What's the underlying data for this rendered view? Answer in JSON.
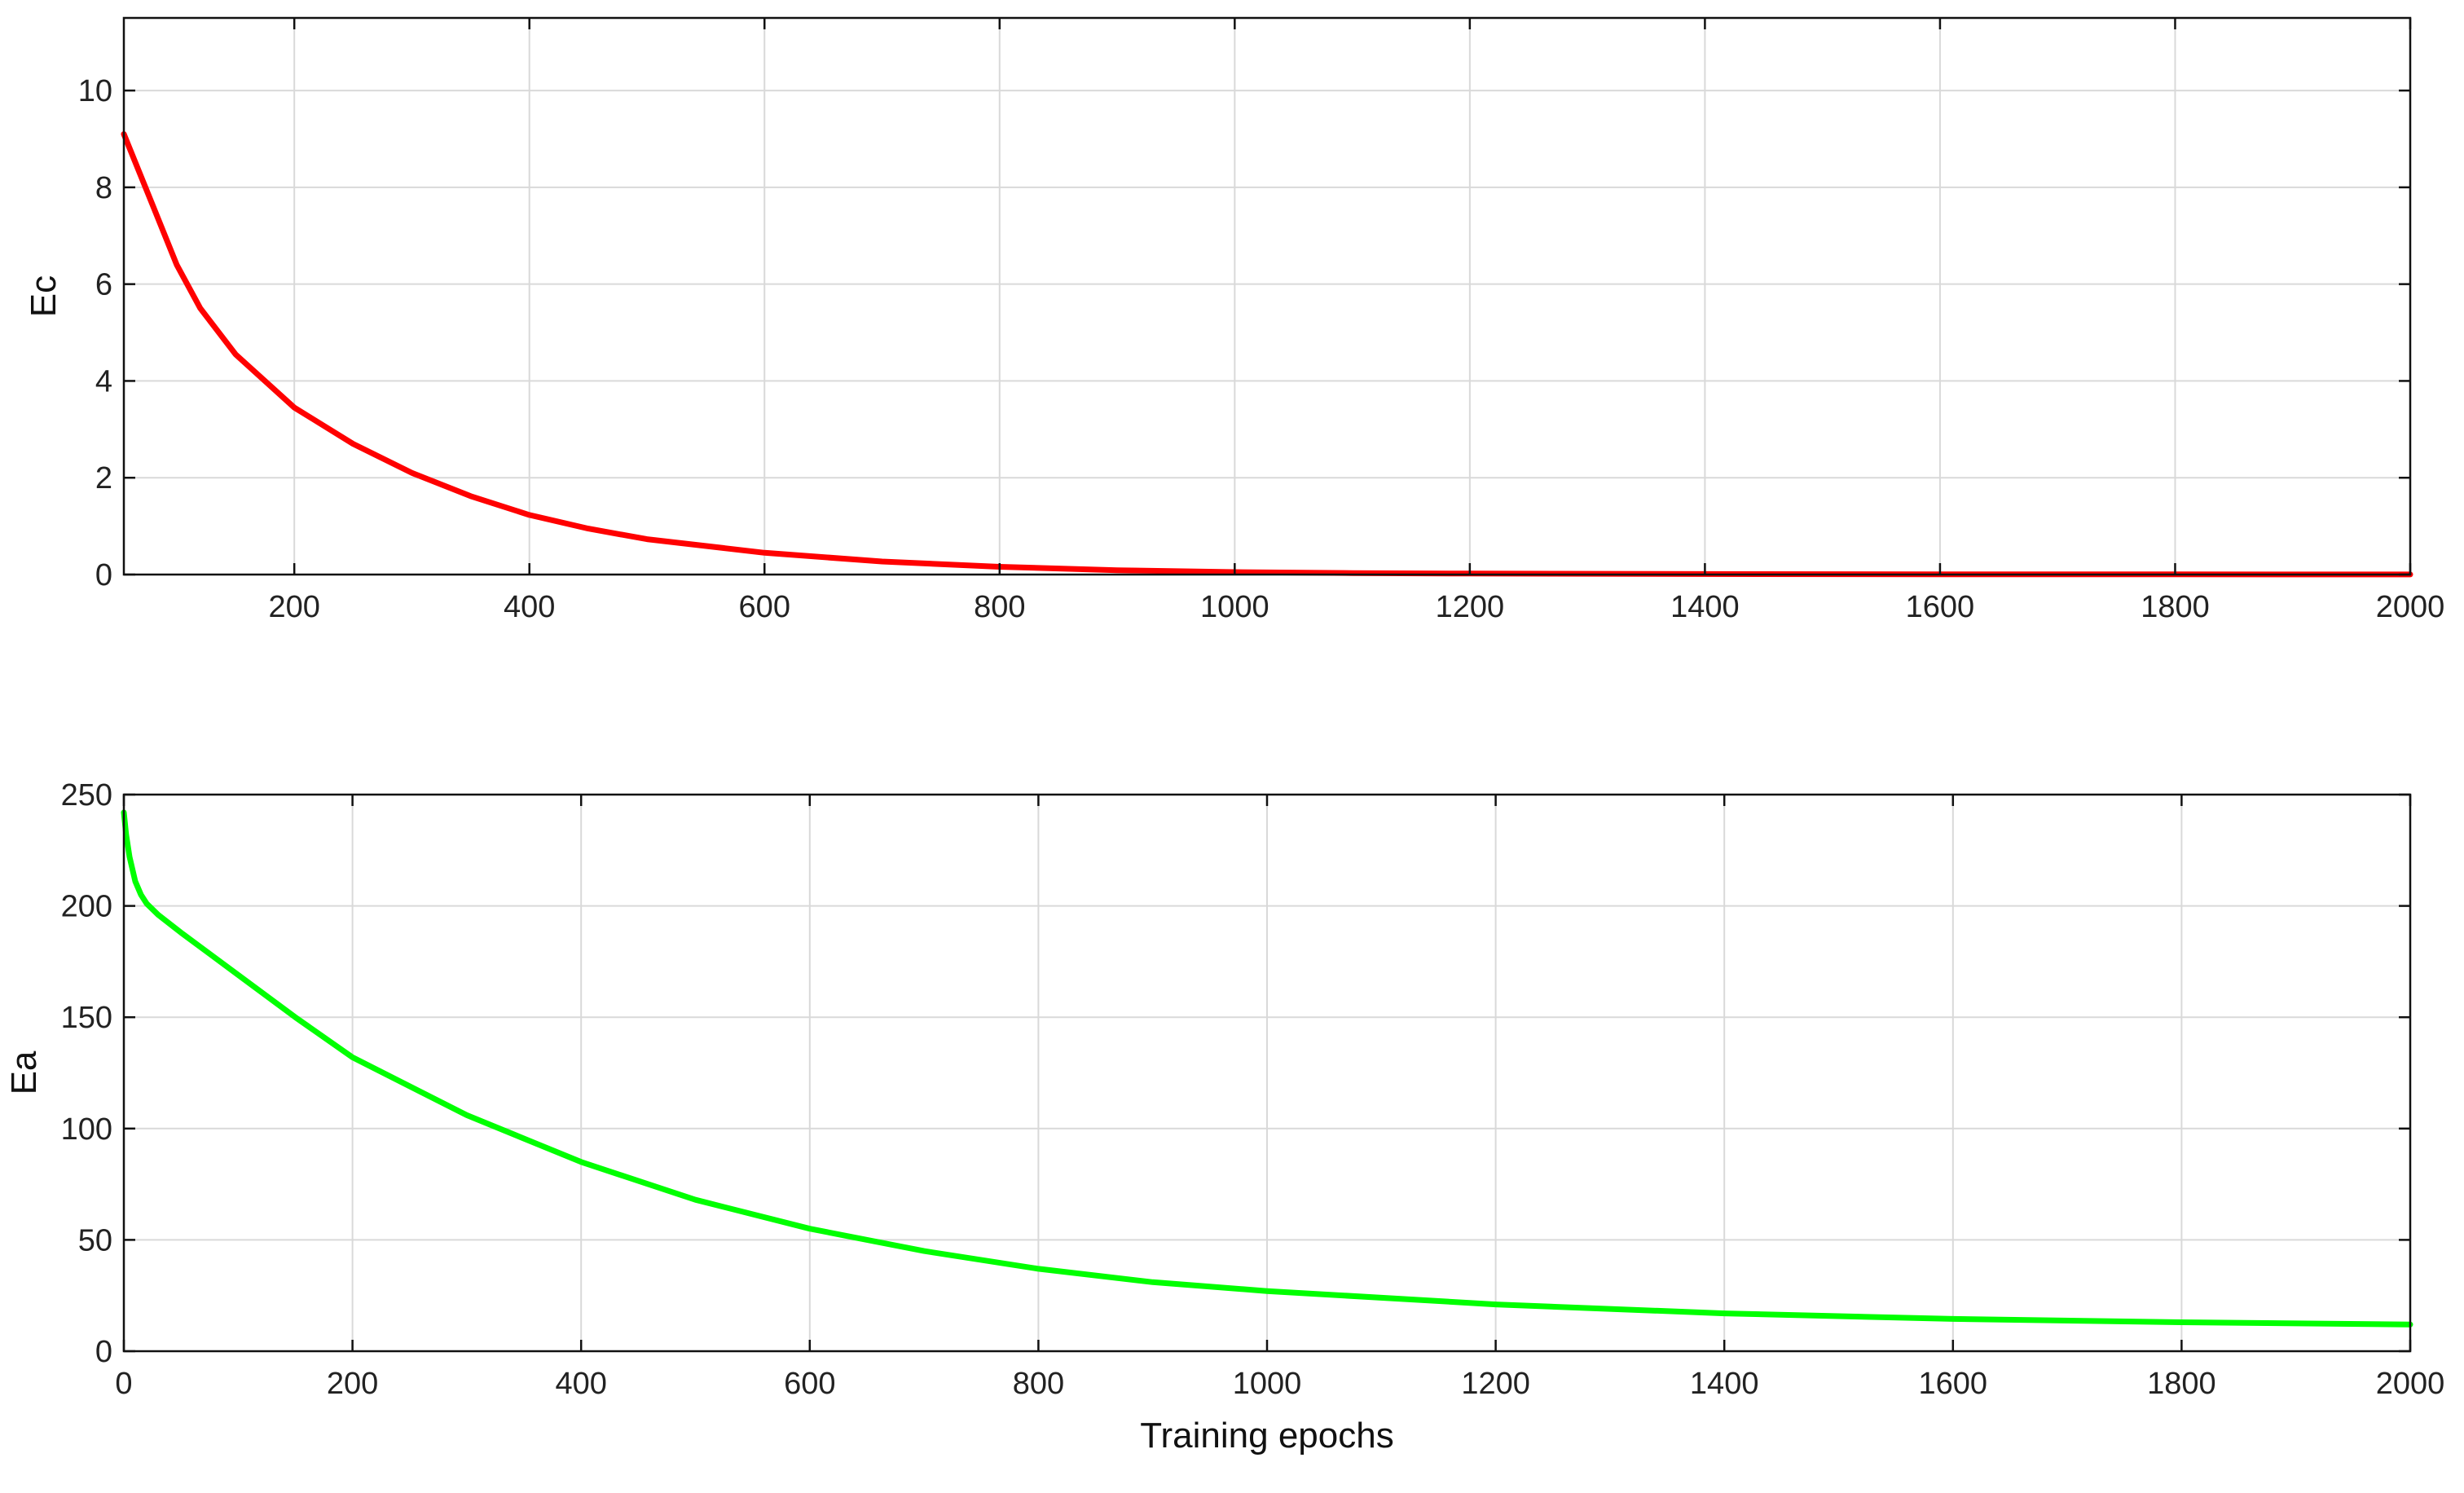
{
  "chart_data": [
    {
      "type": "line",
      "title": "",
      "xlabel": "",
      "ylabel": "Ec",
      "xlim": [
        55,
        2000
      ],
      "ylim": [
        0,
        11.5
      ],
      "xticks": [
        200,
        400,
        600,
        800,
        1000,
        1200,
        1400,
        1600,
        1800,
        2000
      ],
      "yticks": [
        0,
        2,
        4,
        6,
        8,
        10
      ],
      "grid": true,
      "series": [
        {
          "color": "#ff0000",
          "x": [
            55,
            80,
            100,
            120,
            150,
            200,
            250,
            300,
            350,
            400,
            450,
            500,
            600,
            700,
            800,
            900,
            1000,
            1100,
            1200,
            1400,
            1600,
            1800,
            2000
          ],
          "y": [
            9.1,
            7.6,
            6.4,
            5.5,
            4.55,
            3.45,
            2.7,
            2.1,
            1.62,
            1.23,
            0.95,
            0.73,
            0.45,
            0.27,
            0.16,
            0.09,
            0.05,
            0.03,
            0.02,
            0.01,
            0.005,
            0.003,
            0.002
          ]
        }
      ]
    },
    {
      "type": "line",
      "title": "",
      "xlabel": "Training epochs",
      "ylabel": "Ea",
      "xlim": [
        0,
        2000
      ],
      "ylim": [
        0,
        250
      ],
      "xticks": [
        0,
        200,
        400,
        600,
        800,
        1000,
        1200,
        1400,
        1600,
        1800,
        2000
      ],
      "yticks": [
        0,
        50,
        100,
        150,
        200,
        250
      ],
      "grid": true,
      "series": [
        {
          "color": "#00ff00",
          "x": [
            0,
            2,
            5,
            10,
            15,
            20,
            30,
            50,
            100,
            150,
            200,
            300,
            400,
            500,
            600,
            700,
            800,
            900,
            1000,
            1200,
            1400,
            1600,
            1800,
            2000
          ],
          "y": [
            242,
            232,
            222,
            211,
            205,
            201,
            196,
            188,
            169,
            150,
            132,
            106,
            85,
            68,
            55,
            45,
            37,
            31,
            27,
            21,
            17,
            14.5,
            13,
            12
          ]
        }
      ]
    }
  ]
}
